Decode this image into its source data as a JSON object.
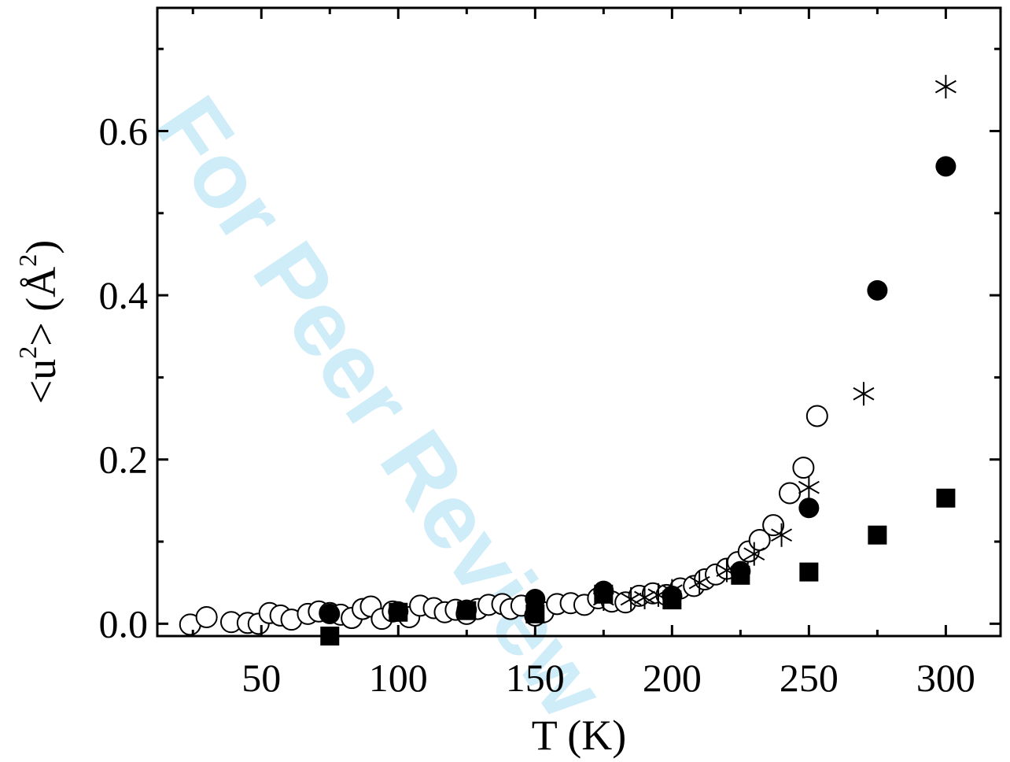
{
  "watermark": "For Peer Review",
  "chart_data": {
    "type": "scatter",
    "xlabel": "T (K)",
    "ylabel": "<u²> (Å²)",
    "ylabel_parts": {
      "open": "<u",
      "sup1": "2",
      "mid": "> (Å",
      "sup2": "2",
      "close": ")"
    },
    "xlim": [
      12,
      320
    ],
    "ylim": [
      -0.015,
      0.75
    ],
    "xticks": [
      50,
      100,
      150,
      200,
      250,
      300
    ],
    "xtick_labels": [
      "50",
      "100",
      "150",
      "200",
      "250",
      "300"
    ],
    "yticks": [
      0.0,
      0.2,
      0.4,
      0.6
    ],
    "ytick_labels": [
      "0.0",
      "0.2",
      "0.4",
      "0.6"
    ],
    "grid": false,
    "legend": "none",
    "series": [
      {
        "marker": "open-circle",
        "x": [
          24,
          30,
          39,
          45,
          49,
          53,
          57,
          61,
          67,
          71,
          75,
          79,
          83,
          87,
          90,
          94,
          98,
          104,
          108,
          113,
          117,
          121,
          125,
          129,
          133,
          138,
          141,
          145,
          150,
          153,
          158,
          163,
          168,
          173,
          178,
          183,
          188,
          193,
          198,
          203,
          208,
          212,
          216,
          220,
          224,
          228,
          232,
          237,
          243,
          248,
          253
        ],
        "y": [
          -0.001,
          0.008,
          0.002,
          0.001,
          0.0,
          0.013,
          0.01,
          0.005,
          0.012,
          0.015,
          0.013,
          0.011,
          0.007,
          0.018,
          0.021,
          0.006,
          0.015,
          0.008,
          0.022,
          0.019,
          0.014,
          0.017,
          0.012,
          0.018,
          0.023,
          0.024,
          0.018,
          0.022,
          0.01,
          0.014,
          0.024,
          0.025,
          0.023,
          0.031,
          0.027,
          0.026,
          0.034,
          0.037,
          0.035,
          0.043,
          0.046,
          0.054,
          0.06,
          0.067,
          0.075,
          0.088,
          0.102,
          0.12,
          0.159,
          0.19,
          0.253
        ]
      },
      {
        "marker": "asterisk",
        "x": [
          175,
          185,
          190,
          195,
          200,
          210,
          220,
          230,
          240,
          250,
          270,
          300
        ],
        "y": [
          0.03,
          0.03,
          0.032,
          0.035,
          0.04,
          0.05,
          0.065,
          0.085,
          0.108,
          0.166,
          0.28,
          0.654
        ]
      },
      {
        "marker": "filled-circle",
        "x": [
          75,
          100,
          125,
          150,
          175,
          200,
          225,
          250,
          275,
          300
        ],
        "y": [
          0.012,
          0.015,
          0.017,
          0.03,
          0.04,
          0.034,
          0.064,
          0.141,
          0.406,
          0.557
        ]
      },
      {
        "marker": "filled-square",
        "x": [
          75,
          100,
          125,
          150,
          175,
          200,
          225,
          250,
          275,
          300
        ],
        "y": [
          -0.015,
          0.014,
          0.016,
          0.012,
          0.036,
          0.029,
          0.059,
          0.063,
          0.108,
          0.153
        ]
      }
    ]
  }
}
